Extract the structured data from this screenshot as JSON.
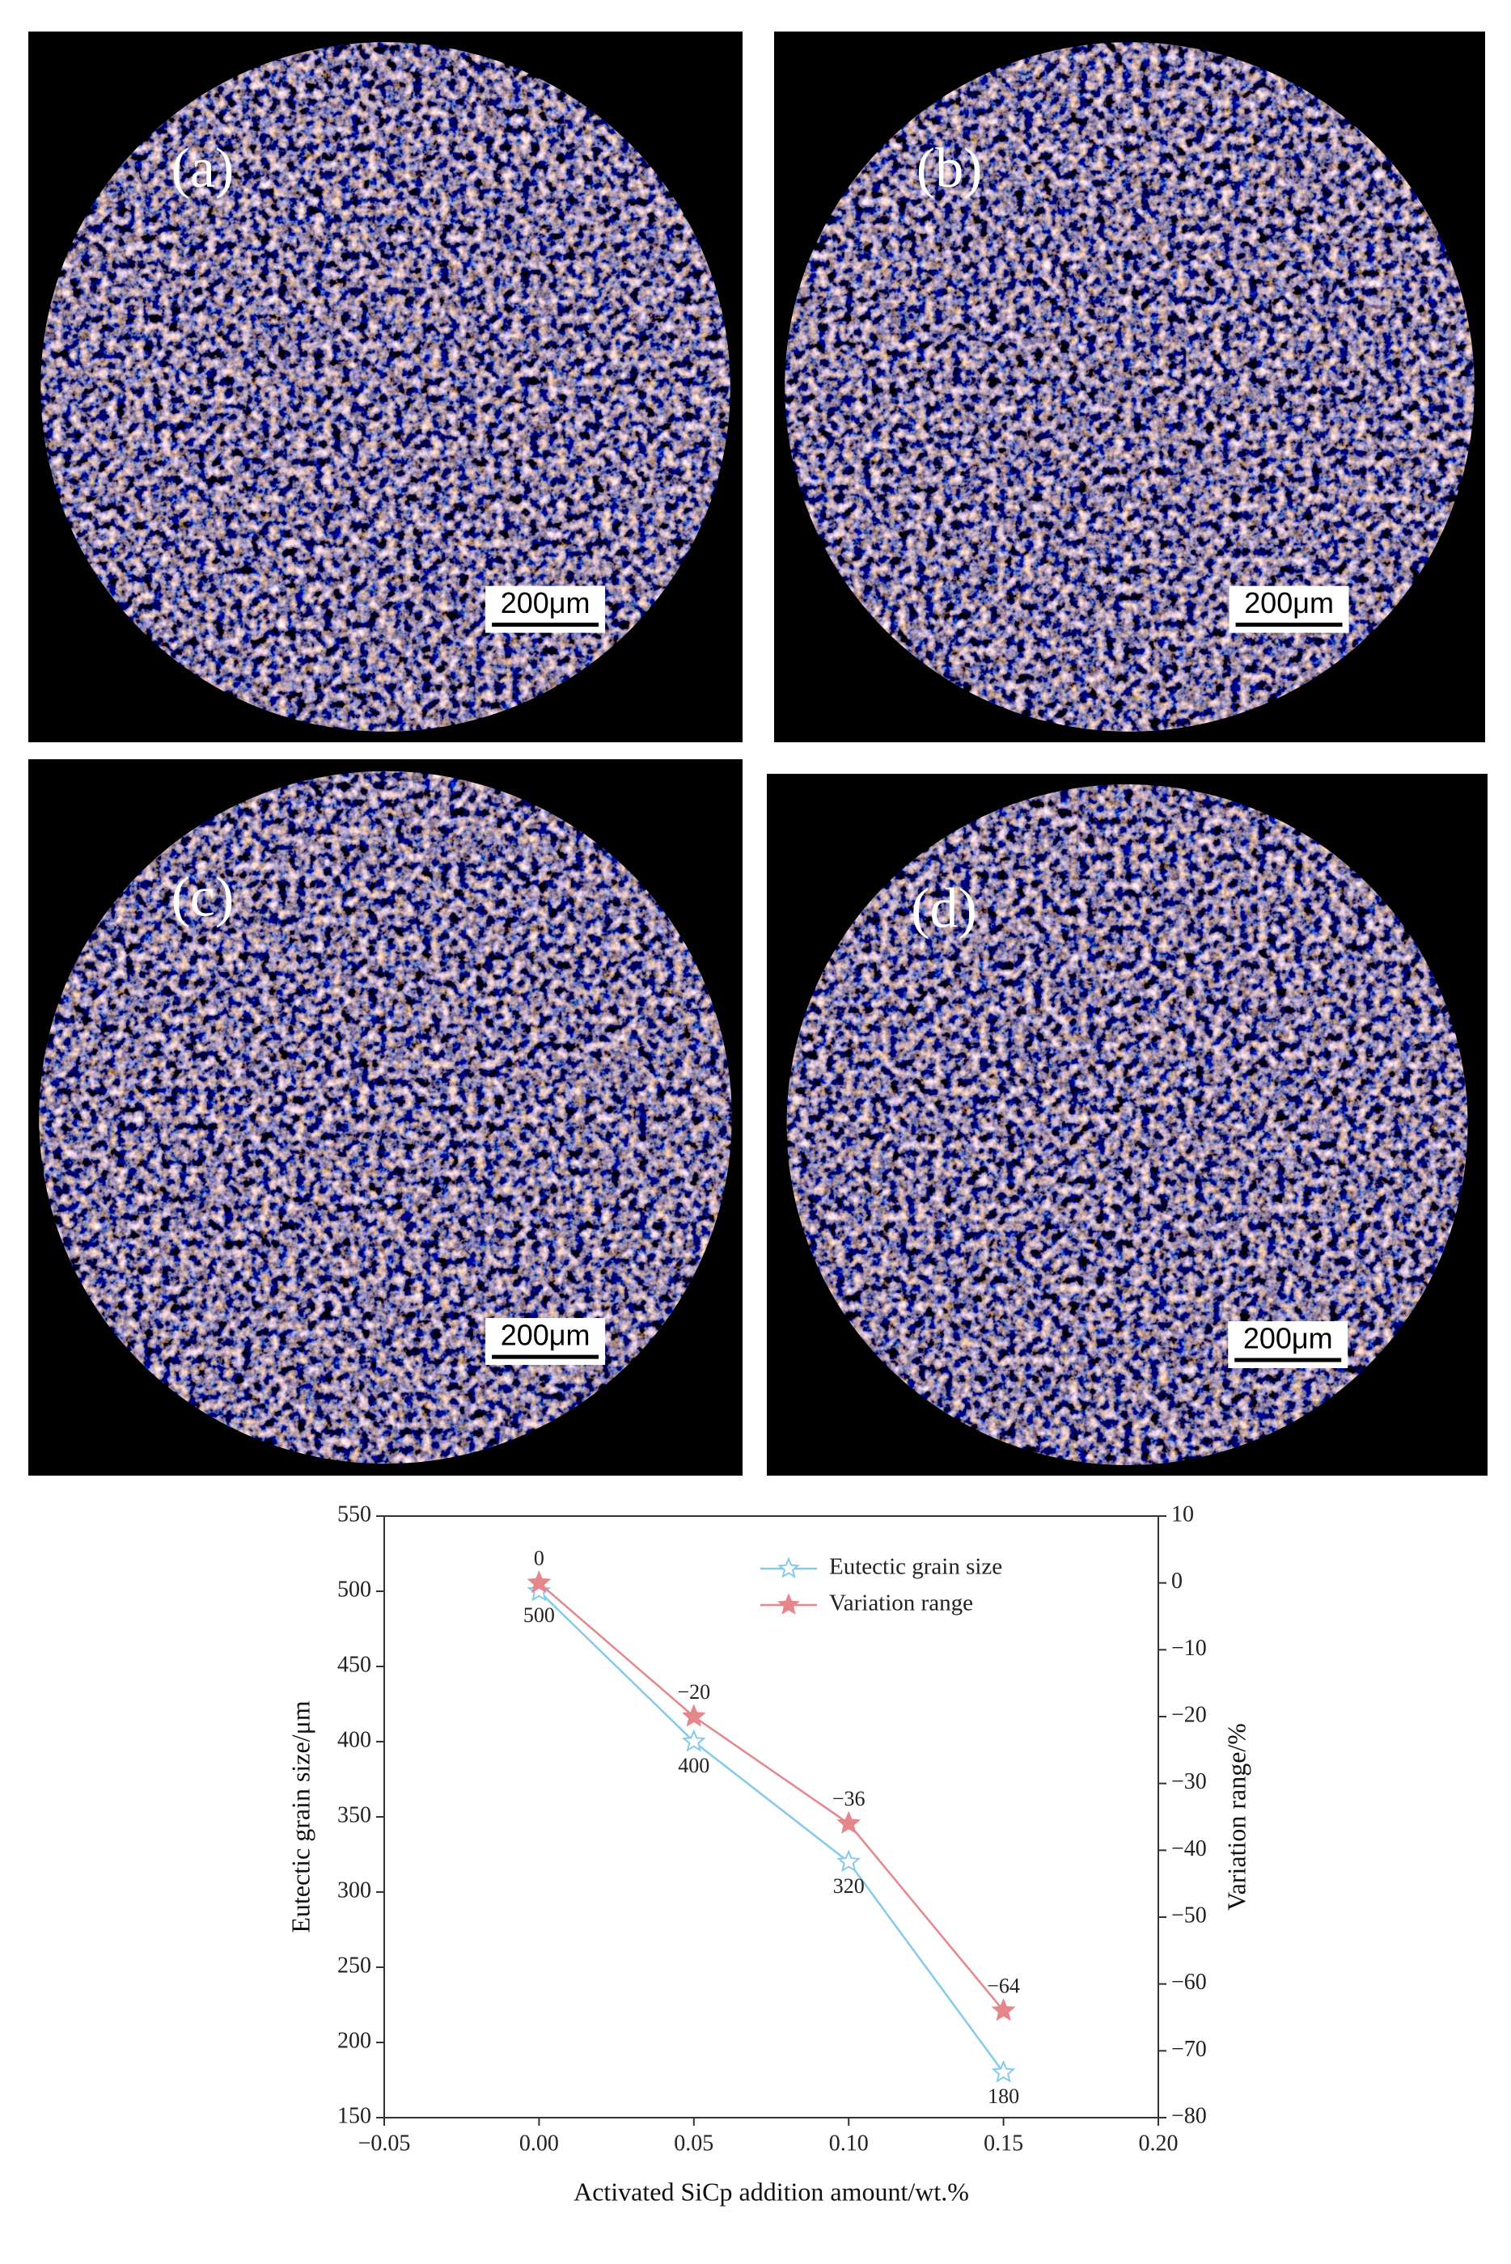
{
  "panels": [
    {
      "label": "(a)",
      "scale_bar": "200μm"
    },
    {
      "label": "(b)",
      "scale_bar": "200μm"
    },
    {
      "label": "(c)",
      "scale_bar": "200μm"
    },
    {
      "label": "(d)",
      "scale_bar": "200μm"
    }
  ],
  "chart_data": {
    "type": "line",
    "x_label": "Activated SiCp addition amount/wt.%",
    "y_label": "Eutectic grain size/μm",
    "y2_label": "Variation range/%",
    "x": [
      0.0,
      0.05,
      0.1,
      0.15
    ],
    "xlim": [
      -0.05,
      0.2
    ],
    "xticks": [
      {
        "value": -0.05,
        "label": "−0.05"
      },
      {
        "value": 0,
        "label": "0.00"
      },
      {
        "value": 0.05,
        "label": "0.05"
      },
      {
        "value": 0.1,
        "label": "0.10"
      },
      {
        "value": 0.15,
        "label": "0.15"
      },
      {
        "value": 0.2,
        "label": "0.20"
      }
    ],
    "ylim": [
      150,
      550
    ],
    "yticks": [
      150,
      200,
      250,
      300,
      350,
      400,
      450,
      500,
      550
    ],
    "y2lim": [
      -80,
      10
    ],
    "y2ticks": [
      {
        "value": -80,
        "label": "−80"
      },
      {
        "value": -70,
        "label": "−70"
      },
      {
        "value": -60,
        "label": "−60"
      },
      {
        "value": -50,
        "label": "−50"
      },
      {
        "value": -40,
        "label": "−40"
      },
      {
        "value": -30,
        "label": "−30"
      },
      {
        "value": -20,
        "label": "−20"
      },
      {
        "value": -10,
        "label": "−10"
      },
      0,
      10
    ],
    "legend": "upper right",
    "series": [
      {
        "name": "Eutectic grain size",
        "color": "#86c9ee",
        "marker": "hollow-star",
        "values": [
          500,
          400,
          320,
          180
        ]
      },
      {
        "name": "Variation range",
        "color": "#e5868c",
        "marker": "star",
        "axis": "y2",
        "values": [
          0,
          -20,
          -36,
          -64
        ],
        "value_labels": [
          "0",
          "−20",
          "−36",
          "−64"
        ]
      }
    ]
  }
}
